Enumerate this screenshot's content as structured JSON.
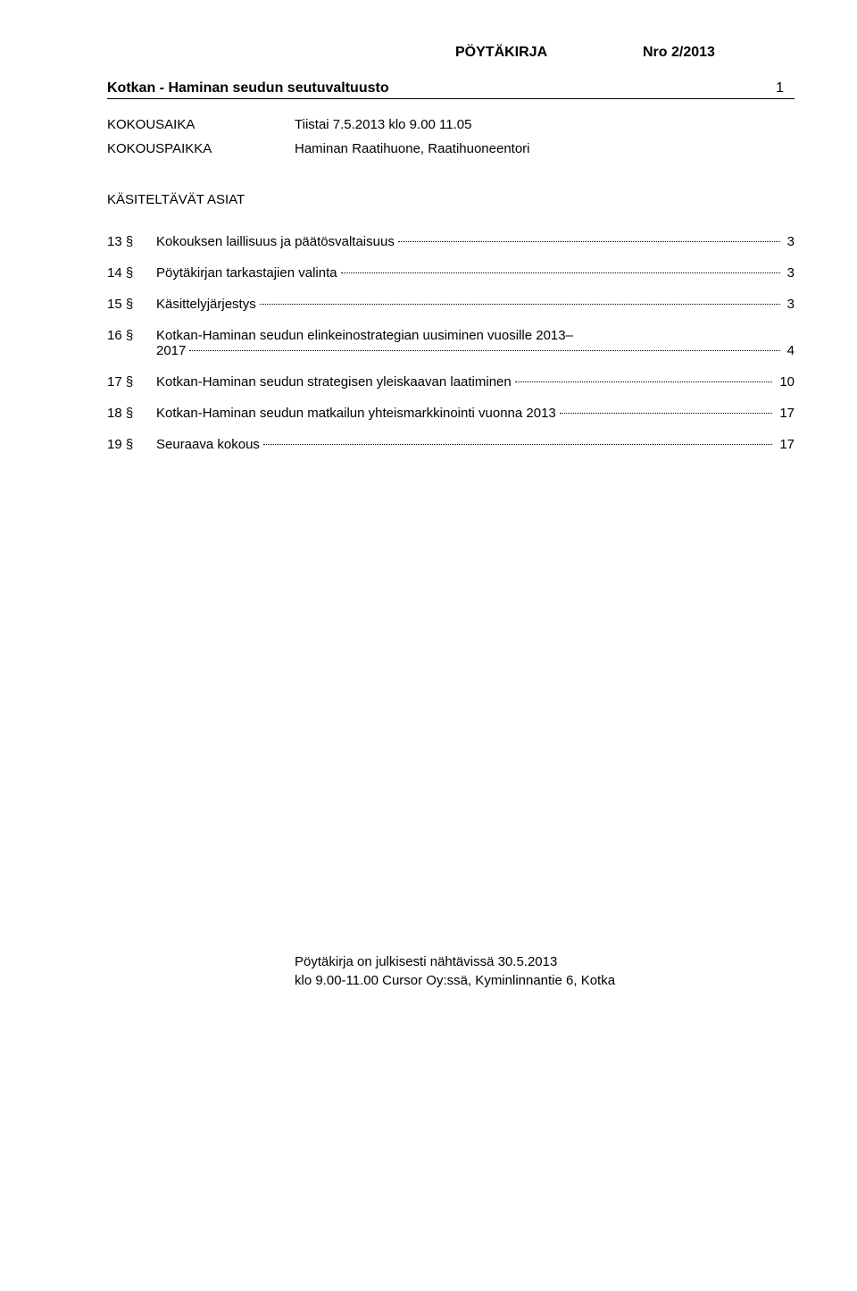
{
  "header": {
    "doc_type": "PÖYTÄKIRJA",
    "doc_number": "Nro 2/2013"
  },
  "org": {
    "title": "Kotkan - Haminan seudun seutuvaltuusto",
    "page": "1"
  },
  "meta": {
    "time_label": "KOKOUSAIKA",
    "time_value": "Tiistai 7.5.2013 klo 9.00 11.05",
    "place_label": "KOKOUSPAIKKA",
    "place_value": "Haminan Raatihuone, Raatihuoneentori"
  },
  "section_title": "KÄSITELTÄVÄT ASIAT",
  "toc": [
    {
      "num": "13 §",
      "text": "Kokouksen laillisuus ja päätösvaltaisuus",
      "page": "3"
    },
    {
      "num": "14 §",
      "text": "Pöytäkirjan tarkastajien valinta",
      "page": "3"
    },
    {
      "num": "15 §",
      "text": "Käsittelyjärjestys",
      "page": "3"
    },
    {
      "num": "16 §",
      "text_l1": "Kotkan-Haminan seudun elinkeinostrategian uusiminen vuosille 2013–",
      "text_l2": "2017",
      "page": "4",
      "multiline": true
    },
    {
      "num": "17 §",
      "text": "Kotkan-Haminan seudun strategisen yleiskaavan laatiminen",
      "page": "10"
    },
    {
      "num": "18 §",
      "text": "Kotkan-Haminan seudun matkailun yhteismarkkinointi vuonna 2013",
      "page": "17"
    },
    {
      "num": "19 §",
      "text": "Seuraava kokous",
      "page": "17"
    }
  ],
  "footer": {
    "line1": "Pöytäkirja on julkisesti nähtävissä 30.5.2013",
    "line2": "klo 9.00-11.00 Cursor Oy:ssä, Kyminlinnantie 6, Kotka"
  }
}
